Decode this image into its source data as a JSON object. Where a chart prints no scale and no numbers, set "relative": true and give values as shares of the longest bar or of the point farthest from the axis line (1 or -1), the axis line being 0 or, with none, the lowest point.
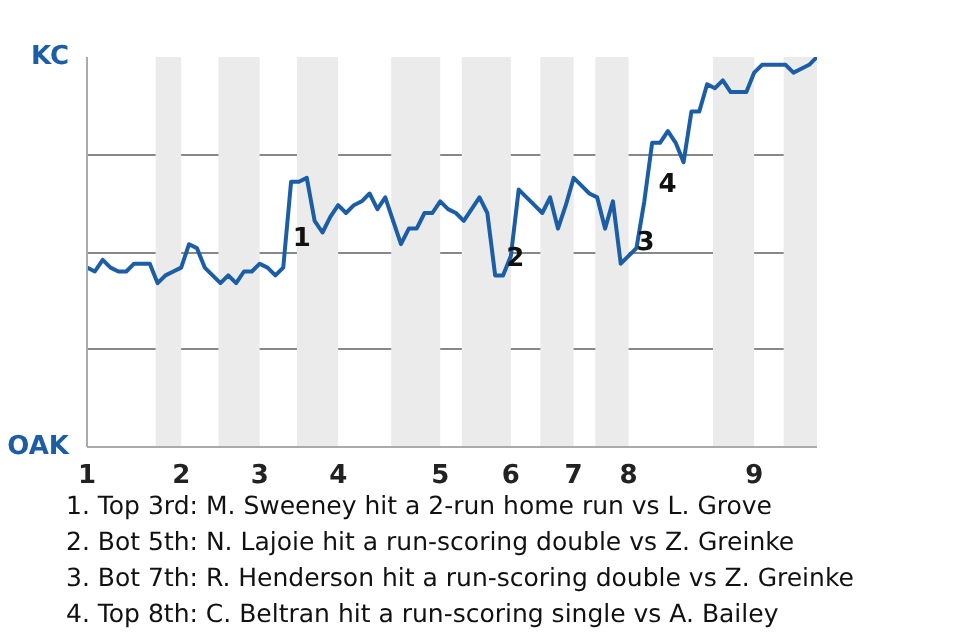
{
  "chart_data": {
    "type": "line",
    "relative": true,
    "categories": [
      "1",
      null,
      null,
      null,
      null,
      null,
      null,
      null,
      null,
      null,
      null,
      null,
      "2",
      null,
      null,
      null,
      null,
      null,
      null,
      null,
      null,
      null,
      "3",
      null,
      null,
      null,
      null,
      null,
      null,
      null,
      null,
      null,
      "4",
      null,
      null,
      null,
      null,
      null,
      null,
      null,
      null,
      null,
      null,
      null,
      null,
      "5",
      null,
      null,
      null,
      null,
      null,
      null,
      null,
      null,
      "6",
      null,
      null,
      null,
      null,
      null,
      null,
      null,
      "7",
      null,
      null,
      null,
      null,
      null,
      null,
      "8",
      null,
      null,
      null,
      null,
      null,
      null,
      null,
      null,
      null,
      null,
      null,
      null,
      null,
      null,
      null,
      "9",
      null,
      null,
      null,
      null,
      null,
      null,
      null,
      null
    ],
    "grid": "y",
    "line_style": "solid",
    "series": [
      {
        "color": "#1b5ea6",
        "values": [
          0.46,
          0.45,
          0.48,
          0.46,
          0.45,
          0.45,
          0.47,
          0.47,
          0.47,
          0.42,
          0.44,
          0.45,
          0.46,
          0.52,
          0.51,
          0.46,
          0.44,
          0.42,
          0.44,
          0.42,
          0.45,
          0.45,
          0.47,
          0.46,
          0.44,
          0.46,
          0.68,
          0.68,
          0.69,
          0.58,
          0.55,
          0.59,
          0.62,
          0.6,
          0.62,
          0.63,
          0.65,
          0.61,
          0.64,
          0.58,
          0.52,
          0.56,
          0.56,
          0.6,
          0.6,
          0.63,
          0.61,
          0.6,
          0.58,
          0.61,
          0.64,
          0.6,
          0.44,
          0.44,
          0.49,
          0.66,
          0.64,
          0.62,
          0.6,
          0.64,
          0.56,
          0.62,
          0.69,
          0.67,
          0.65,
          0.64,
          0.56,
          0.63,
          0.47,
          0.49,
          0.51,
          0.63,
          0.78,
          0.78,
          0.81,
          0.78,
          0.73,
          0.86,
          0.86,
          0.93,
          0.92,
          0.94,
          0.91,
          0.91,
          0.91,
          0.96,
          0.98,
          0.98,
          0.98,
          0.98,
          0.96,
          0.97,
          0.98,
          1.0
        ]
      }
    ],
    "annotations": [
      "KC",
      "OAK",
      "1",
      "2",
      "3",
      "4",
      "1. Top 3rd: M. Sweeney hit a 2-run home run vs L. Grove",
      "2. Bot 5th: N. Lajoie hit a run-scoring double vs Z. Greinke",
      "3. Bot 7th: R. Henderson hit a run-scoring double vs Z. Greinke",
      "4. Top 8th: C. Beltran hit a run-scoring single vs A. Bailey"
    ]
  }
}
